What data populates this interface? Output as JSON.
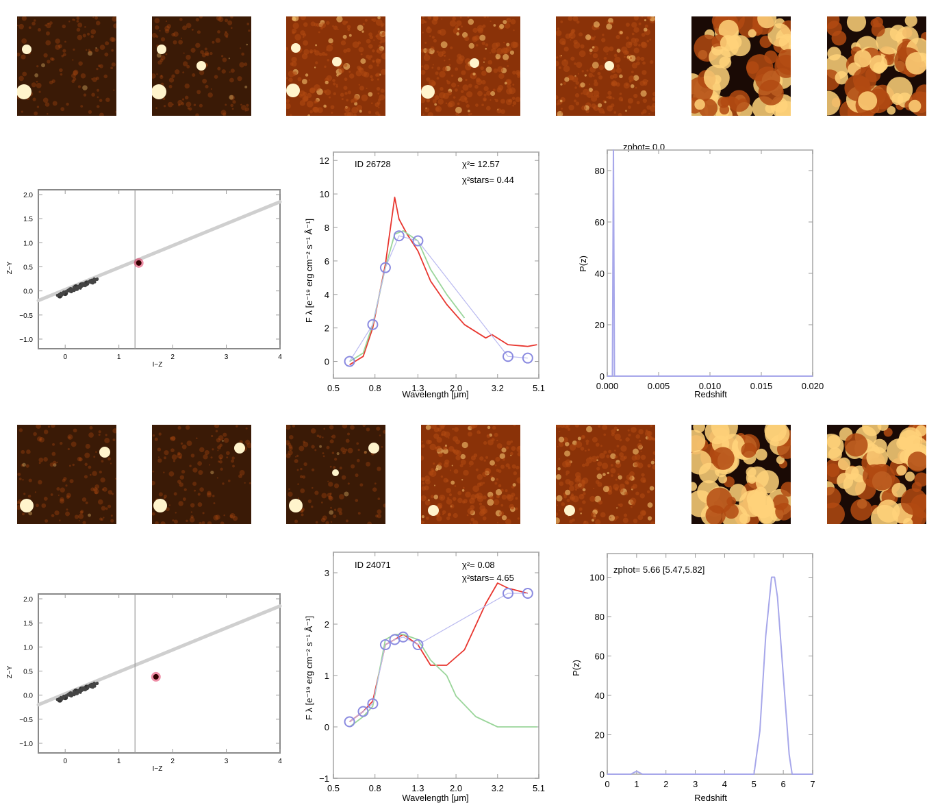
{
  "objects": [
    {
      "sed": {
        "id_text": "ID 26728",
        "chi2_text": "χ²= 12.57",
        "chi2_stars_text": "χ²stars=  0.44",
        "xlabel": "Wavelength [μm]",
        "ylabel": "F λ [e⁻¹⁹ erg cm⁻² s⁻¹ Å⁻¹]",
        "xticks": [
          "0.5",
          "0.8",
          "1.3",
          "2.0",
          "3.2",
          "5.1"
        ],
        "yticks": [
          "0",
          "2",
          "4",
          "6",
          "8",
          "10",
          "12"
        ]
      },
      "pz": {
        "zphot_text": "zphot= 0.0",
        "xlabel": "Redshift",
        "ylabel": "P(z)",
        "xticks": [
          "0.000",
          "0.005",
          "0.010",
          "0.015",
          "0.020"
        ],
        "yticks": [
          "0",
          "20",
          "40",
          "60",
          "80"
        ]
      },
      "cc": {
        "xlabel": "I−Z",
        "ylabel": "Z−Y",
        "xticks": [
          "0",
          "1",
          "2",
          "3",
          "4"
        ],
        "yticks": [
          "2.0",
          "1.5",
          "1.0",
          "0.5",
          "0.0",
          "−0.5",
          "−1.0"
        ]
      }
    },
    {
      "sed": {
        "id_text": "ID 24071",
        "chi2_text": "χ²=  0.08",
        "chi2_stars_text": "χ²stars=  4.65",
        "xlabel": "Wavelength [μm]",
        "ylabel": "F λ [e⁻¹⁹ erg cm⁻² s⁻¹ Å⁻¹]",
        "xticks": [
          "0.5",
          "0.8",
          "1.3",
          "2.0",
          "3.2",
          "5.1"
        ],
        "yticks": [
          "−1",
          "0",
          "1",
          "2",
          "3"
        ]
      },
      "pz": {
        "zphot_text": "zphot= 5.66 [5.47,5.82]",
        "xlabel": "Redshift",
        "ylabel": "P(z)",
        "xticks": [
          "0",
          "1",
          "2",
          "3",
          "4",
          "5",
          "6",
          "7"
        ],
        "yticks": [
          "0",
          "20",
          "40",
          "60",
          "80",
          "100"
        ]
      },
      "cc": {
        "xlabel": "I−Z",
        "ylabel": "Z−Y",
        "xticks": [
          "0",
          "1",
          "2",
          "3",
          "4"
        ],
        "yticks": [
          "2.0",
          "1.5",
          "1.0",
          "0.5",
          "0.0",
          "−0.5",
          "−1.0"
        ]
      }
    }
  ],
  "colors": {
    "sed_star_model": "#e8352e",
    "sed_galaxy_model": "#9ad59a",
    "pz_line": "#a7a7ea",
    "cc_point": "#e02050",
    "stamp_dark": "#3a1a06",
    "stamp_mid": "#b24a12",
    "stamp_bright": "#ffd27a"
  },
  "chart_data": [
    {
      "type": "line",
      "title": "ID 26728",
      "xlabel": "Wavelength [μm]",
      "ylabel": "F λ [e⁻¹⁹ erg cm⁻² s⁻¹ Å⁻¹]",
      "x_scale": "log",
      "xlim": [
        0.5,
        5.1
      ],
      "ylim": [
        -1,
        12.5
      ],
      "series": [
        {
          "x": [
            0.6,
            0.7,
            0.78,
            0.9,
            1.0,
            1.05,
            1.15,
            1.3,
            1.5,
            1.8,
            2.2,
            2.8,
            3.0,
            3.6,
            4.5,
            5.0
          ],
          "y": [
            -0.2,
            0.3,
            2.0,
            5.8,
            9.8,
            8.5,
            7.6,
            6.6,
            4.8,
            3.4,
            2.2,
            1.4,
            1.6,
            1.0,
            0.9,
            1.0
          ]
        },
        {
          "x": [
            0.6,
            0.7,
            0.78,
            0.9,
            1.0,
            1.1,
            1.3,
            1.5,
            1.8,
            2.2
          ],
          "y": [
            0.0,
            0.5,
            2.2,
            5.6,
            7.6,
            7.8,
            7.2,
            5.5,
            4.0,
            2.6
          ]
        },
        {
          "x": [
            0.6,
            0.78,
            0.9,
            1.05,
            1.3,
            3.6,
            4.5
          ],
          "y": [
            0.0,
            2.2,
            5.6,
            7.5,
            7.2,
            0.3,
            0.2
          ]
        }
      ]
    },
    {
      "type": "line",
      "title": "zphot= 0.0",
      "xlabel": "Redshift",
      "ylabel": "P(z)",
      "xlim": [
        0.0,
        0.02
      ],
      "ylim": [
        0,
        88
      ],
      "series": [
        {
          "x": [
            0.0,
            0.0005,
            0.0006,
            0.0007,
            0.02
          ],
          "y": [
            0,
            0,
            88,
            0,
            0
          ]
        }
      ]
    },
    {
      "type": "line",
      "title": "ID 24071",
      "xlabel": "Wavelength [μm]",
      "ylabel": "F λ [e⁻¹⁹ erg cm⁻² s⁻¹ Å⁻¹]",
      "x_scale": "log",
      "xlim": [
        0.5,
        5.1
      ],
      "ylim": [
        -1,
        3.4
      ],
      "series": [
        {
          "x": [
            0.6,
            0.7,
            0.78,
            0.9,
            1.0,
            1.1,
            1.3,
            1.5,
            1.8,
            2.2,
            2.8,
            3.2,
            3.6,
            4.5
          ],
          "y": [
            0.1,
            0.3,
            0.5,
            1.6,
            1.7,
            1.8,
            1.6,
            1.2,
            1.2,
            1.5,
            2.4,
            2.8,
            2.7,
            2.6
          ]
        },
        {
          "x": [
            0.6,
            0.7,
            0.78,
            0.9,
            1.0,
            1.1,
            1.3,
            1.5,
            1.8,
            2.0,
            2.5,
            3.2,
            5.0
          ],
          "y": [
            0.0,
            0.2,
            0.4,
            1.7,
            1.8,
            1.8,
            1.7,
            1.3,
            1.0,
            0.6,
            0.2,
            0.0,
            0.0
          ]
        },
        {
          "x": [
            0.6,
            0.7,
            0.78,
            0.9,
            1.0,
            1.1,
            1.3,
            3.6,
            4.5
          ],
          "y": [
            0.1,
            0.3,
            0.45,
            1.6,
            1.7,
            1.75,
            1.6,
            2.6,
            2.6
          ]
        }
      ]
    },
    {
      "type": "line",
      "title": "zphot= 5.66 [5.47,5.82]",
      "xlabel": "Redshift",
      "ylabel": "P(z)",
      "xlim": [
        0,
        7
      ],
      "ylim": [
        0,
        112
      ],
      "series": [
        {
          "x": [
            0,
            0.8,
            1.0,
            1.2,
            4.9,
            5.0,
            5.2,
            5.4,
            5.6,
            5.7,
            5.8,
            6.0,
            6.2,
            6.3,
            7.0
          ],
          "y": [
            0,
            0,
            1.5,
            0,
            0,
            0,
            22,
            70,
            100,
            100,
            90,
            50,
            10,
            0,
            0
          ]
        }
      ]
    },
    {
      "type": "scatter",
      "xlabel": "I−Z",
      "ylabel": "Z−Y",
      "xlim": [
        -0.5,
        4.0
      ],
      "ylim": [
        -1.2,
        2.1
      ],
      "series": [
        {
          "x": [
            -0.1,
            0.0,
            0.1,
            0.2,
            0.3,
            0.4,
            0.5
          ],
          "y": [
            -0.1,
            -0.05,
            0.02,
            0.08,
            0.12,
            0.16,
            0.2
          ]
        },
        {
          "x": [
            1.37
          ],
          "y": [
            0.58
          ]
        }
      ]
    },
    {
      "type": "scatter",
      "xlabel": "I−Z",
      "ylabel": "Z−Y",
      "xlim": [
        -0.5,
        4.0
      ],
      "ylim": [
        -1.2,
        2.1
      ],
      "series": [
        {
          "x": [
            -0.1,
            0.0,
            0.1,
            0.2,
            0.3,
            0.4,
            0.5
          ],
          "y": [
            -0.1,
            -0.05,
            0.02,
            0.08,
            0.12,
            0.16,
            0.2
          ]
        },
        {
          "x": [
            1.69
          ],
          "y": [
            0.38
          ]
        }
      ]
    }
  ]
}
